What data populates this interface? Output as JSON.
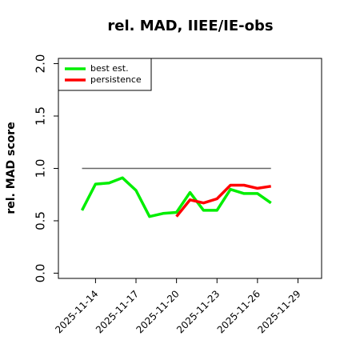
{
  "chart_data": {
    "type": "line",
    "title": "rel. MAD, IIEE/IE-obs",
    "y_label": "rel. MAD score",
    "x": [
      "2025-11-13",
      "2025-11-14",
      "2025-11-15",
      "2025-11-16",
      "2025-11-17",
      "2025-11-18",
      "2025-11-19",
      "2025-11-20",
      "2025-11-21",
      "2025-11-22",
      "2025-11-23",
      "2025-11-24",
      "2025-11-25",
      "2025-11-26",
      "2025-11-27"
    ],
    "series": [
      {
        "name": "best est.",
        "color": "#00ee00",
        "values": [
          0.6,
          0.85,
          0.86,
          0.91,
          0.79,
          0.54,
          0.57,
          0.58,
          0.77,
          0.6,
          0.6,
          0.8,
          0.76,
          0.76,
          0.67
        ]
      },
      {
        "name": "persistence",
        "color": "#ff0000",
        "values": [
          null,
          null,
          null,
          null,
          null,
          null,
          null,
          0.54,
          0.7,
          0.67,
          0.71,
          0.84,
          0.84,
          0.81,
          0.83
        ]
      }
    ],
    "reference_line": {
      "value": 1.0,
      "color": "#666666"
    },
    "xlim": [
      "2025-11-11T06:00",
      "2025-11-30T18:00"
    ],
    "xticks": [
      "2025-11-14",
      "2025-11-17",
      "2025-11-20",
      "2025-11-23",
      "2025-11-26",
      "2025-11-29"
    ],
    "ylim": [
      -0.05,
      2.05
    ],
    "yticks": [
      {
        "value": 0,
        "label": "0.0"
      },
      {
        "value": 0.5,
        "label": "0.5"
      },
      {
        "value": 1,
        "label": "1.0"
      },
      {
        "value": 1.5,
        "label": "1.5"
      },
      {
        "value": 2,
        "label": "2.0"
      }
    ],
    "legend": "top-left"
  }
}
